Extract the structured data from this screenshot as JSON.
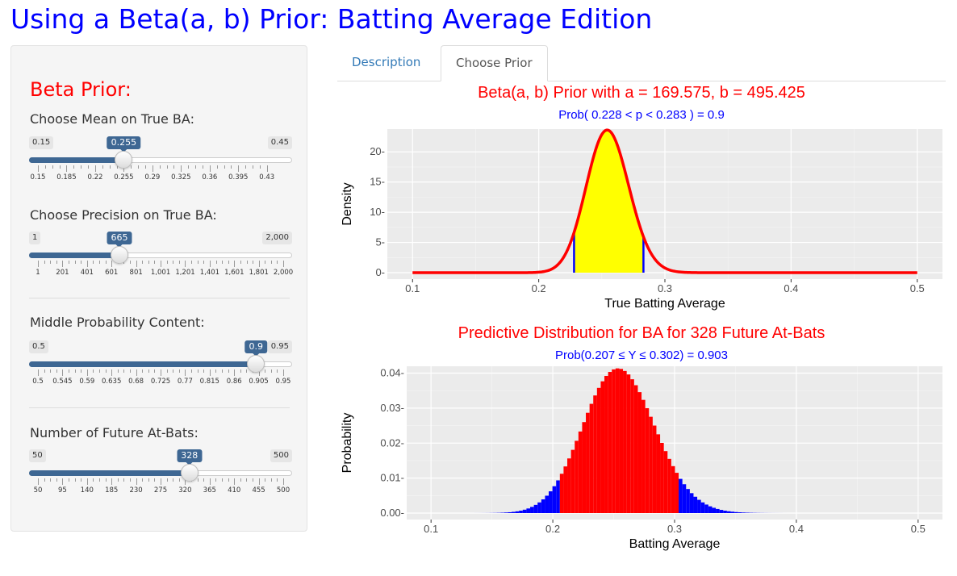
{
  "app_title": "Using a Beta(a, b) Prior: Batting Average Edition",
  "sidebar": {
    "heading": "Beta Prior:",
    "controls": [
      {
        "label": "Choose Mean on True BA:",
        "min": "0.15",
        "max": "0.45",
        "value": "0.255",
        "min_num": 0.15,
        "max_num": 0.45,
        "value_num": 0.255,
        "ticks": [
          "0.15",
          "0.185",
          "0.22",
          "0.255",
          "0.29",
          "0.325",
          "0.36",
          "0.395",
          "0.43"
        ],
        "tick_nums": [
          0.15,
          0.185,
          0.22,
          0.255,
          0.29,
          0.325,
          0.36,
          0.395,
          0.43
        ]
      },
      {
        "label": "Choose Precision on True BA:",
        "min": "1",
        "max": "2,000",
        "value": "665",
        "min_num": 1,
        "max_num": 2000,
        "value_num": 665,
        "ticks": [
          "1",
          "201",
          "401",
          "601",
          "801",
          "1,001",
          "1,201",
          "1,401",
          "1,601",
          "1,801",
          "2,000"
        ],
        "tick_nums": [
          1,
          201,
          401,
          601,
          801,
          1001,
          1201,
          1401,
          1601,
          1801,
          2000
        ]
      },
      {
        "label": "Middle Probability Content:",
        "min": "0.5",
        "max": "0.95",
        "value": "0.9",
        "min_num": 0.5,
        "max_num": 0.95,
        "value_num": 0.9,
        "ticks": [
          "0.5",
          "0.545",
          "0.59",
          "0.635",
          "0.68",
          "0.725",
          "0.77",
          "0.815",
          "0.86",
          "0.905",
          "0.95"
        ],
        "tick_nums": [
          0.5,
          0.545,
          0.59,
          0.635,
          0.68,
          0.725,
          0.77,
          0.815,
          0.86,
          0.905,
          0.95
        ]
      },
      {
        "label": "Number of Future At-Bats:",
        "min": "50",
        "max": "500",
        "value": "328",
        "min_num": 50,
        "max_num": 500,
        "value_num": 328,
        "ticks": [
          "50",
          "95",
          "140",
          "185",
          "230",
          "275",
          "320",
          "365",
          "410",
          "455",
          "500"
        ],
        "tick_nums": [
          50,
          95,
          140,
          185,
          230,
          275,
          320,
          365,
          410,
          455,
          500
        ]
      }
    ]
  },
  "tabs": [
    {
      "label": "Description",
      "active": false
    },
    {
      "label": "Choose Prior",
      "active": true
    }
  ],
  "chart_data": [
    {
      "type": "area",
      "title": "Beta(a, b) Prior with a = 169.575, b = 495.425",
      "subtitle": "Prob( 0.228 < p < 0.283 ) = 0.9",
      "xlabel": "True Batting Average",
      "ylabel": "Density",
      "xlim": [
        0.1,
        0.5
      ],
      "ylim": [
        0,
        23.5
      ],
      "x_ticks": [
        "0.1",
        "0.2",
        "0.3",
        "0.4",
        "0.5"
      ],
      "x_tick_values": [
        0.1,
        0.2,
        0.3,
        0.4,
        0.5
      ],
      "y_ticks": [
        "0-",
        "5-",
        "10-",
        "15-",
        "20-"
      ],
      "y_tick_values": [
        0,
        5,
        10,
        15,
        20
      ],
      "beta_a": 169.575,
      "beta_b": 495.425,
      "shaded_interval": [
        0.228,
        0.283
      ],
      "curve_color": "#ff0000",
      "fill_color": "#ffff00",
      "bound_color": "#0000ff",
      "grid": true
    },
    {
      "type": "bar",
      "title": "Predictive Distribution for BA for 328 Future At-Bats",
      "subtitle": "Prob(0.207 ≤ Y ≤ 0.302) = 0.903",
      "xlabel": "Batting Average",
      "ylabel": "Probability",
      "xlim": [
        0.1,
        0.5
      ],
      "ylim": [
        0,
        0.0415
      ],
      "x_ticks": [
        "0.1",
        "0.2",
        "0.3",
        "0.4",
        "0.5"
      ],
      "x_tick_values": [
        0.1,
        0.2,
        0.3,
        0.4,
        0.5
      ],
      "y_ticks": [
        "0.00-",
        "0.01-",
        "0.02-",
        "0.03-",
        "0.04-"
      ],
      "y_tick_values": [
        0,
        0.01,
        0.02,
        0.03,
        0.04
      ],
      "n_at_bats": 328,
      "beta_a": 169.575,
      "beta_b": 495.425,
      "highlight_interval": [
        0.207,
        0.302
      ],
      "inside_color": "#ff0000",
      "outside_color": "#0000ff",
      "grid": true
    }
  ]
}
